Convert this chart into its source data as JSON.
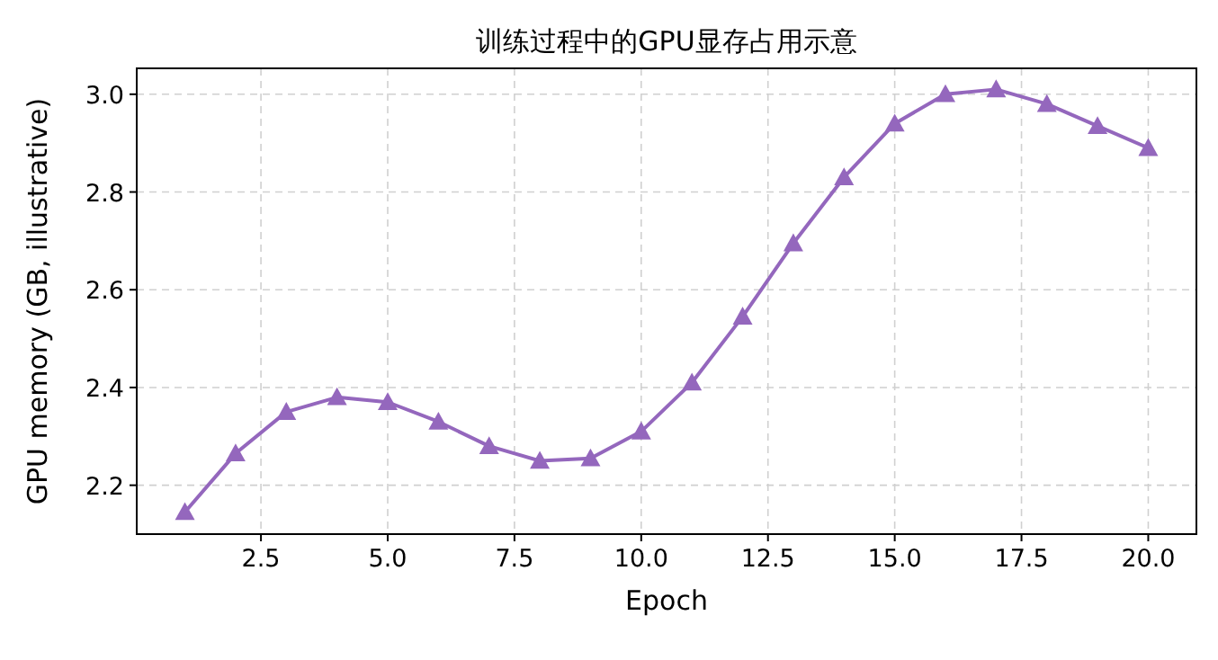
{
  "chart_data": {
    "type": "line",
    "title": "训练过程中的GPU显存占用示意",
    "xlabel": "Epoch",
    "ylabel": "GPU memory (GB, illustrative)",
    "x": [
      1,
      2,
      3,
      4,
      5,
      6,
      7,
      8,
      9,
      10,
      11,
      12,
      13,
      14,
      15,
      16,
      17,
      18,
      19,
      20
    ],
    "series": [
      {
        "color": "#9467bd",
        "values": [
          2.145,
          2.265,
          2.35,
          2.38,
          2.37,
          2.33,
          2.28,
          2.25,
          2.255,
          2.31,
          2.41,
          2.545,
          2.695,
          2.83,
          2.94,
          3.0,
          3.01,
          2.98,
          2.935,
          2.89
        ]
      }
    ],
    "xlim": [
      0.05,
      20.95
    ],
    "ylim": [
      2.1,
      3.053
    ],
    "xticks": [
      {
        "value": 2.5,
        "label": "2.5"
      },
      {
        "value": 5,
        "label": "5.0"
      },
      {
        "value": 7.5,
        "label": "7.5"
      },
      {
        "value": 10,
        "label": "10.0"
      },
      {
        "value": 12.5,
        "label": "12.5"
      },
      {
        "value": 15,
        "label": "15.0"
      },
      {
        "value": 17.5,
        "label": "17.5"
      },
      {
        "value": 20,
        "label": "20.0"
      }
    ],
    "yticks": [
      {
        "value": 2.2,
        "label": "2.2"
      },
      {
        "value": 2.4,
        "label": "2.4"
      },
      {
        "value": 2.6,
        "label": "2.6"
      },
      {
        "value": 2.8,
        "label": "2.8"
      },
      {
        "value": 3,
        "label": "3.0"
      }
    ],
    "grid": true,
    "marker": "triangle",
    "line_style": "solid"
  }
}
